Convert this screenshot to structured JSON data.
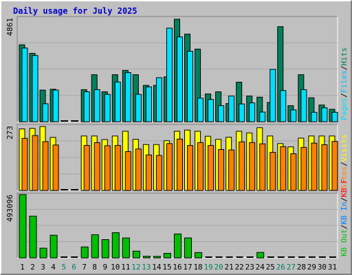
{
  "title": "Daily usage for July 2025",
  "colors": {
    "background": "#c0c0c0",
    "plot_background": "#c0c0c0",
    "title": "#0000cc",
    "hits": "#00805c",
    "files": "#00c0ff",
    "pages": "#00e0ff",
    "visits": "#ffff00",
    "sites": "#ff8000",
    "kb_f": "#ff0000",
    "kb_in": "#0080ff",
    "kb_out": "#00c000",
    "traffic": "#00c000",
    "weekday_label": "#000000",
    "weekend_label": "#00805c"
  },
  "chart_data": [
    {
      "type": "bar",
      "panel": "hits-files-pages",
      "scale_label": "4861",
      "ylim": [
        0,
        4861
      ],
      "legend": [
        {
          "label": "Hits",
          "color": "#00805c"
        },
        {
          "label": "/",
          "color": "#000000"
        },
        {
          "label": "Files",
          "color": "#00c0ff"
        },
        {
          "label": "/",
          "color": "#000000"
        },
        {
          "label": "Pages",
          "color": "#00e0ff"
        }
      ],
      "categories": [
        "1",
        "2",
        "3",
        "4",
        "5",
        "6",
        "7",
        "8",
        "9",
        "10",
        "11",
        "12",
        "13",
        "14",
        "15",
        "16",
        "17",
        "18",
        "19",
        "20",
        "21",
        "22",
        "23",
        "24",
        "25",
        "26",
        "27",
        "28",
        "29",
        "30",
        "31"
      ],
      "series": [
        {
          "name": "Hits",
          "color": "#00805c",
          "values": [
            3600,
            3200,
            1480,
            1520,
            0,
            0,
            1500,
            2200,
            1400,
            2200,
            2400,
            2200,
            1700,
            1700,
            2100,
            4800,
            4100,
            3400,
            1300,
            1400,
            850,
            1850,
            1200,
            1150,
            900,
            4450,
            750,
            2200,
            1120,
            780,
            580
          ]
        },
        {
          "name": "Files",
          "color": "#00e0ff",
          "values": [
            3450,
            3100,
            840,
            1480,
            0,
            0,
            1400,
            1500,
            1280,
            1860,
            2300,
            1280,
            1630,
            2060,
            4380,
            3970,
            3300,
            1100,
            1040,
            750,
            1200,
            830,
            880,
            450,
            2450,
            1460,
            550,
            1500,
            440,
            650,
            440
          ]
        }
      ]
    },
    {
      "type": "bar",
      "panel": "visits-sites",
      "scale_label": "273",
      "ylim": [
        0,
        273
      ],
      "legend": [
        {
          "label": "Visits",
          "color": "#ffff00"
        },
        {
          "label": "/",
          "color": "#000000"
        },
        {
          "label": "Sites",
          "color": "#ff8000"
        }
      ],
      "categories": [
        "1",
        "2",
        "3",
        "4",
        "5",
        "6",
        "7",
        "8",
        "9",
        "10",
        "11",
        "12",
        "13",
        "14",
        "15",
        "16",
        "17",
        "18",
        "19",
        "20",
        "21",
        "22",
        "23",
        "24",
        "25",
        "26",
        "27",
        "28",
        "29",
        "30",
        "31"
      ],
      "series": [
        {
          "name": "Visits",
          "color": "#ffff00",
          "values": [
            260,
            262,
            270,
            224,
            0,
            0,
            230,
            230,
            215,
            230,
            250,
            216,
            194,
            194,
            210,
            250,
            255,
            250,
            229,
            216,
            225,
            250,
            243,
            265,
            230,
            198,
            184,
            221,
            230,
            230,
            230
          ]
        },
        {
          "name": "Sites",
          "color": "#ff8000",
          "values": [
            220,
            232,
            206,
            192,
            0,
            0,
            190,
            202,
            189,
            190,
            164,
            175,
            150,
            148,
            198,
            217,
            190,
            202,
            190,
            173,
            171,
            205,
            202,
            197,
            161,
            185,
            155,
            182,
            200,
            193,
            207
          ]
        }
      ]
    },
    {
      "type": "bar",
      "panel": "kbytes",
      "scale_label": "493096",
      "ylim": [
        0,
        493096
      ],
      "legend": [
        {
          "label": "KB F",
          "color": "#ff0000"
        },
        {
          "label": "/",
          "color": "#000000"
        },
        {
          "label": "KB In",
          "color": "#0080ff"
        },
        {
          "label": "/",
          "color": "#000000"
        },
        {
          "label": "KB Out",
          "color": "#00c000"
        }
      ],
      "categories": [
        "1",
        "2",
        "3",
        "4",
        "5",
        "6",
        "7",
        "8",
        "9",
        "10",
        "11",
        "12",
        "13",
        "14",
        "15",
        "16",
        "17",
        "18",
        "19",
        "20",
        "21",
        "22",
        "23",
        "24",
        "25",
        "26",
        "27",
        "28",
        "29",
        "30",
        "31"
      ],
      "series": [
        {
          "name": "KB Out",
          "color": "#00c000",
          "values": [
            493096,
            325000,
            75000,
            176000,
            0,
            0,
            85000,
            180000,
            142000,
            196000,
            155000,
            52000,
            12000,
            11000,
            35000,
            186000,
            155000,
            41000,
            0,
            0,
            0,
            0,
            0,
            42000,
            0,
            0,
            0,
            0,
            0,
            0,
            0
          ]
        }
      ]
    }
  ],
  "x_axis": {
    "labels": [
      "1",
      "2",
      "3",
      "4",
      "5",
      "6",
      "7",
      "8",
      "9",
      "10",
      "11",
      "12",
      "13",
      "14",
      "15",
      "16",
      "17",
      "18",
      "19",
      "20",
      "21",
      "22",
      "23",
      "24",
      "25",
      "26",
      "27",
      "28",
      "29",
      "30",
      "31"
    ],
    "weekend": [
      5,
      6,
      12,
      13,
      19,
      20,
      26,
      27
    ]
  }
}
